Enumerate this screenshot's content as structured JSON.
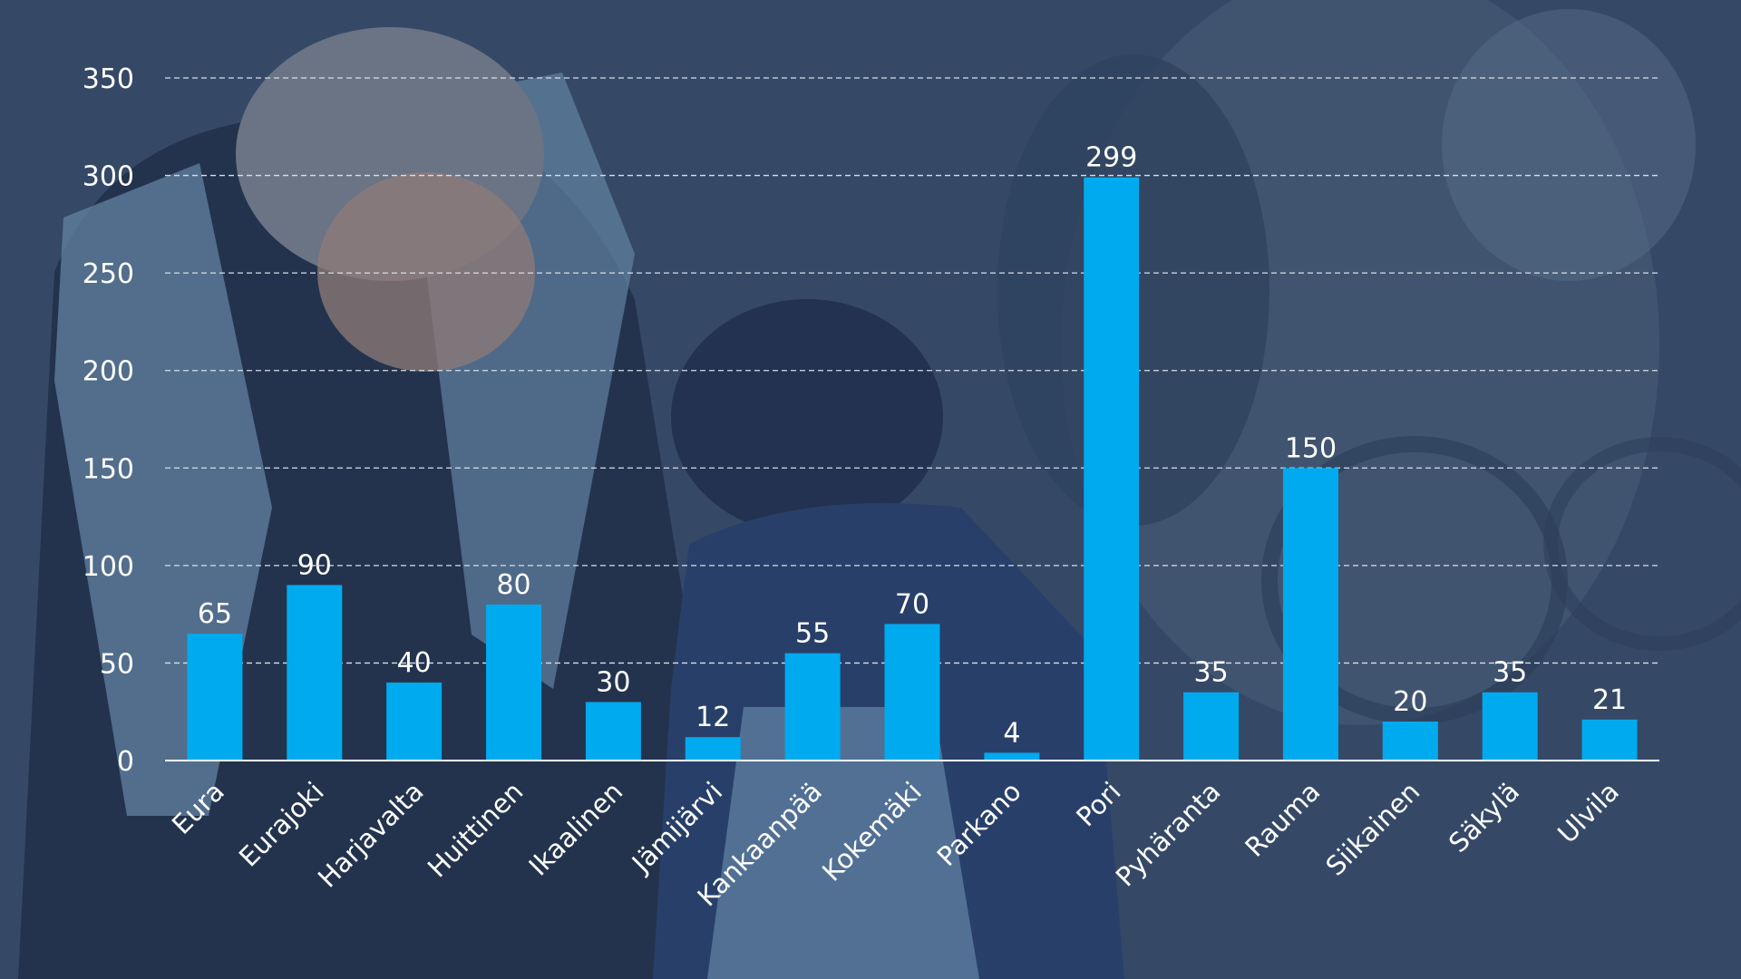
{
  "chart_data": {
    "type": "bar",
    "categories": [
      "Eura",
      "Eurajoki",
      "Harjavalta",
      "Huittinen",
      "Ikaalinen",
      "Jämijärvi",
      "Kankaanpää",
      "Kokemäki",
      "Parkano",
      "Pori",
      "Pyhäranta",
      "Rauma",
      "Siikainen",
      "Säkylä",
      "Ulvila"
    ],
    "values": [
      65,
      90,
      40,
      80,
      30,
      12,
      55,
      70,
      4,
      299,
      35,
      150,
      20,
      35,
      21
    ],
    "yticks": [
      0,
      50,
      100,
      150,
      200,
      250,
      300,
      350
    ],
    "ylim": [
      0,
      350
    ],
    "grid": true,
    "bar_color": "#00aaef"
  }
}
